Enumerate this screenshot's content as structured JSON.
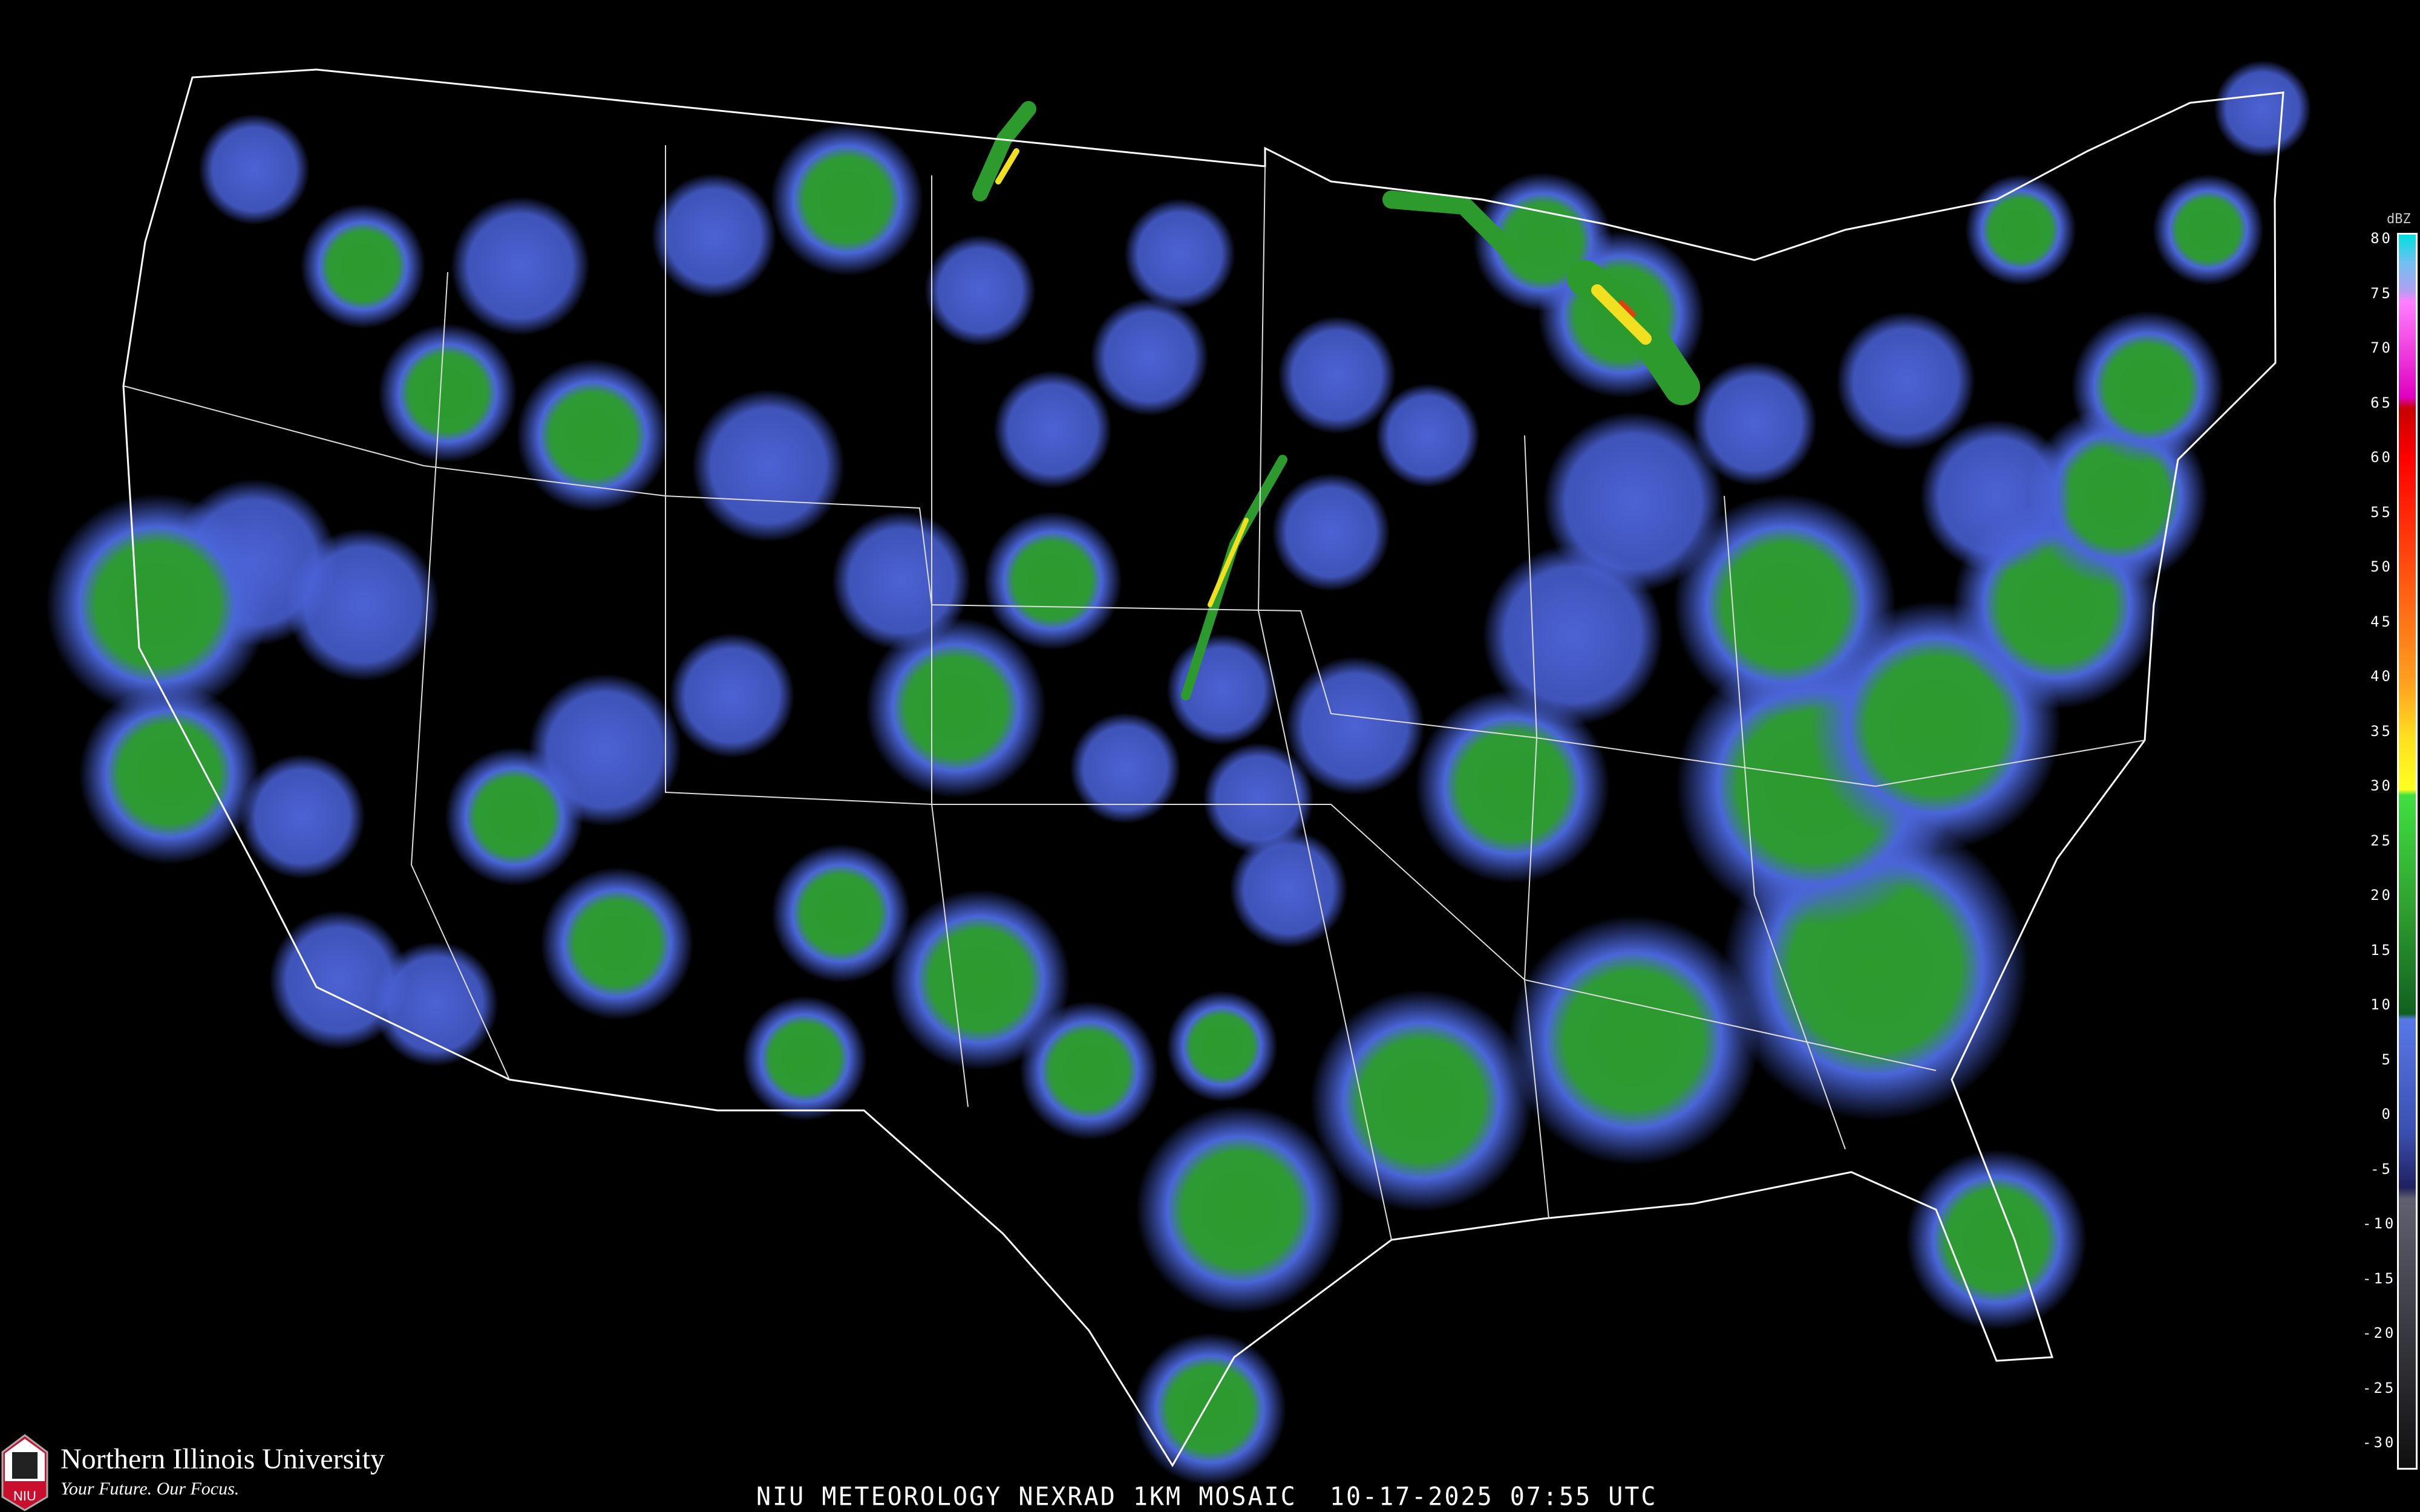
{
  "caption": "NIU METEOROLOGY NEXRAD 1KM MOSAIC  10-17-2025 07:55 UTC",
  "logo": {
    "name": "Northern Illinois University",
    "tagline": "Your Future. Our Focus.",
    "mark_text": "NIU"
  },
  "colorbar": {
    "unit": "dBZ",
    "labels": [
      "80",
      "75",
      "70",
      "65",
      "60",
      "55",
      "50",
      "45",
      "40",
      "35",
      "30",
      "25",
      "20",
      "15",
      "10",
      "5",
      "0",
      "-5",
      "-10",
      "-15",
      "-20",
      "-25",
      "-30"
    ],
    "stops": [
      {
        "dbz": 80,
        "color": "#00e0e0"
      },
      {
        "dbz": 77.5,
        "color": "#70c0f0"
      },
      {
        "dbz": 75,
        "color": "#b0a0f0"
      },
      {
        "dbz": 74,
        "color": "#ff80ff"
      },
      {
        "dbz": 65.5,
        "color": "#e000c0"
      },
      {
        "dbz": 64.5,
        "color": "#c80000"
      },
      {
        "dbz": 60,
        "color": "#ff0000"
      },
      {
        "dbz": 50,
        "color": "#ff5010"
      },
      {
        "dbz": 40,
        "color": "#ffa020"
      },
      {
        "dbz": 35,
        "color": "#ffe020"
      },
      {
        "dbz": 30.5,
        "color": "#ffff20"
      },
      {
        "dbz": 30,
        "color": "#40e040"
      },
      {
        "dbz": 20,
        "color": "#30a030"
      },
      {
        "dbz": 10.5,
        "color": "#106020"
      },
      {
        "dbz": 10,
        "color": "#5878e8"
      },
      {
        "dbz": 0,
        "color": "#3a50b0"
      },
      {
        "dbz": -5,
        "color": "#202060"
      },
      {
        "dbz": -6,
        "color": "#606070"
      },
      {
        "dbz": -30,
        "color": "#101010"
      }
    ]
  },
  "echo_colors": {
    "light": "#5068e0",
    "moderate": "#2c9a2c",
    "heavy": "#f0e020",
    "intense": "#e04010"
  }
}
